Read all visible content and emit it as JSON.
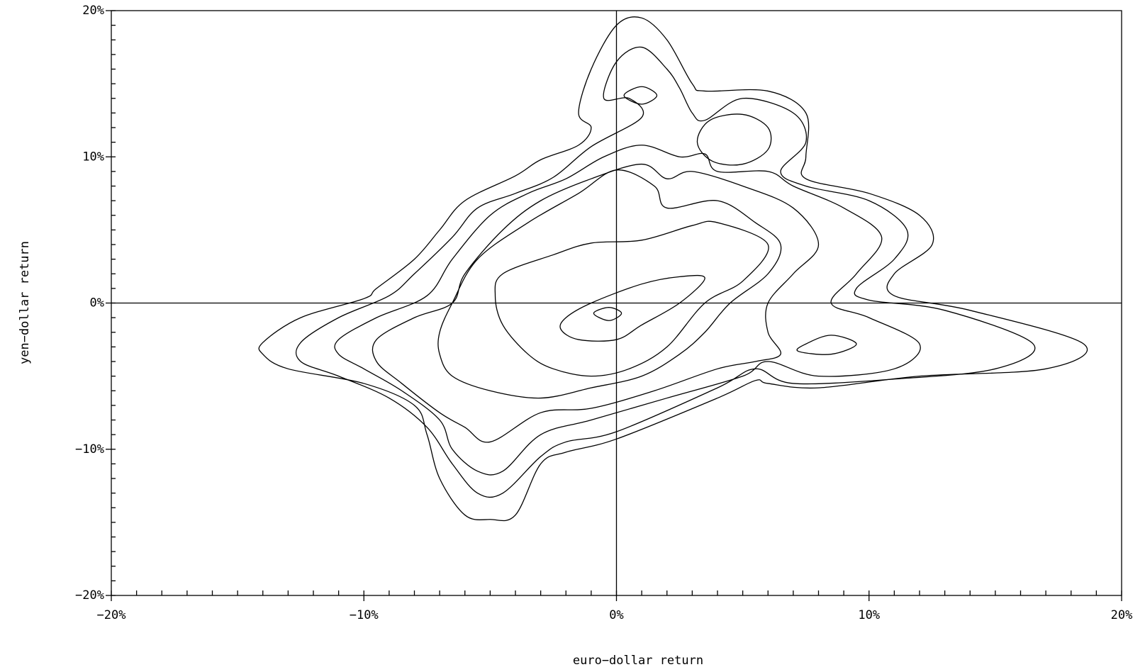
{
  "chart_data": {
    "type": "contour",
    "xlabel": "euro−dollar return",
    "ylabel": "yen−dollar return",
    "xlim": [
      -20,
      20
    ],
    "ylim": [
      -20,
      20
    ],
    "xticks": [
      {
        "value": -20,
        "label": "−20%"
      },
      {
        "value": -10,
        "label": "−10%"
      },
      {
        "value": 0,
        "label": "0%"
      },
      {
        "value": 10,
        "label": "10%"
      },
      {
        "value": 20,
        "label": "20%"
      }
    ],
    "yticks": [
      {
        "value": -20,
        "label": "−20%"
      },
      {
        "value": -10,
        "label": "−10%"
      },
      {
        "value": 0,
        "label": "0%"
      },
      {
        "value": 10,
        "label": "10%"
      },
      {
        "value": 20,
        "label": "20%"
      }
    ],
    "minor_step": 1,
    "vlines": [
      0
    ],
    "hlines": [
      0
    ],
    "color": "#000000",
    "series": [
      {
        "points": [
          [
            -14,
            -2.7
          ],
          [
            -12.5,
            -1
          ],
          [
            -10,
            0.3
          ],
          [
            -9.5,
            1
          ],
          [
            -8,
            3
          ],
          [
            -7,
            5
          ],
          [
            -6,
            7
          ],
          [
            -4,
            8.7
          ],
          [
            -3,
            9.8
          ],
          [
            -1.5,
            10.8
          ],
          [
            -1,
            12
          ],
          [
            -1.5,
            13
          ],
          [
            -1,
            16
          ],
          [
            0,
            19
          ],
          [
            1,
            19.5
          ],
          [
            2,
            18
          ],
          [
            3,
            15
          ],
          [
            3.5,
            14.5
          ],
          [
            6,
            14.5
          ],
          [
            7.5,
            13
          ],
          [
            7.5,
            10
          ],
          [
            7.5,
            8.5
          ],
          [
            10,
            7.5
          ],
          [
            12,
            6
          ],
          [
            12.5,
            4
          ],
          [
            11,
            2
          ],
          [
            11,
            0.5
          ],
          [
            14,
            -0.5
          ],
          [
            18.5,
            -2.8
          ],
          [
            17,
            -4.5
          ],
          [
            12,
            -5
          ],
          [
            8,
            -5.8
          ],
          [
            6,
            -5.5
          ],
          [
            5.5,
            -5.3
          ],
          [
            4,
            -6.5
          ],
          [
            0,
            -9.3
          ],
          [
            -2,
            -10.2
          ],
          [
            -3,
            -11
          ],
          [
            -4,
            -14.5
          ],
          [
            -5,
            -14.8
          ],
          [
            -6,
            -14.5
          ],
          [
            -7,
            -12
          ],
          [
            -7.5,
            -9
          ],
          [
            -8,
            -7
          ],
          [
            -10,
            -5.5
          ],
          [
            -13,
            -4.5
          ],
          [
            -14,
            -3.5
          ]
        ]
      },
      {
        "points": [
          [
            -12.5,
            -2.7
          ],
          [
            -11,
            -1
          ],
          [
            -9,
            0.5
          ],
          [
            -8,
            2
          ],
          [
            -6.5,
            4.5
          ],
          [
            -5.5,
            6.5
          ],
          [
            -4,
            7.5
          ],
          [
            -2.5,
            8.6
          ],
          [
            -1,
            10.7
          ],
          [
            1,
            12.7
          ],
          [
            0.5,
            14
          ],
          [
            -0.5,
            14
          ],
          [
            0,
            16.5
          ],
          [
            1,
            17.5
          ],
          [
            2,
            16
          ],
          [
            2.5,
            14.7
          ],
          [
            3,
            13
          ],
          [
            3.5,
            12.5
          ],
          [
            5,
            14
          ],
          [
            7,
            13
          ],
          [
            7.5,
            11
          ],
          [
            6.5,
            9
          ],
          [
            7.5,
            8
          ],
          [
            10,
            7
          ],
          [
            11.5,
            5
          ],
          [
            11,
            3
          ],
          [
            9.5,
            1
          ],
          [
            10,
            0.2
          ],
          [
            13,
            -0.5
          ],
          [
            16.5,
            -2.8
          ],
          [
            15,
            -4.5
          ],
          [
            11,
            -5.2
          ],
          [
            7,
            -5.5
          ],
          [
            5.5,
            -4.5
          ],
          [
            4,
            -5.8
          ],
          [
            0,
            -8.8
          ],
          [
            -2,
            -9.5
          ],
          [
            -3,
            -10.5
          ],
          [
            -4.5,
            -13
          ],
          [
            -5.5,
            -13
          ],
          [
            -6.5,
            -11
          ],
          [
            -7.5,
            -8.5
          ],
          [
            -9,
            -6.5
          ],
          [
            -11,
            -5
          ],
          [
            -12.5,
            -4
          ]
        ]
      },
      {
        "points": [
          [
            -11,
            -2.5
          ],
          [
            -9.5,
            -1
          ],
          [
            -7.5,
            0.5
          ],
          [
            -6.5,
            3
          ],
          [
            -5,
            6
          ],
          [
            -3.5,
            7.5
          ],
          [
            -2,
            8.5
          ],
          [
            -0.5,
            10
          ],
          [
            1,
            10.8
          ],
          [
            2.5,
            10
          ],
          [
            3.5,
            10.2
          ],
          [
            4,
            9
          ],
          [
            6,
            9
          ],
          [
            7,
            8
          ],
          [
            9,
            6.5
          ],
          [
            10.5,
            4.5
          ],
          [
            9.5,
            2
          ],
          [
            8.5,
            0
          ],
          [
            10,
            -1
          ],
          [
            12,
            -2.8
          ],
          [
            11,
            -4.5
          ],
          [
            8,
            -5
          ],
          [
            6,
            -4
          ],
          [
            5,
            -5
          ],
          [
            2,
            -6.5
          ],
          [
            -1,
            -8
          ],
          [
            -3,
            -9
          ],
          [
            -4.5,
            -11.5
          ],
          [
            -5.5,
            -11.5
          ],
          [
            -6.5,
            -10
          ],
          [
            -7,
            -8
          ],
          [
            -8.5,
            -6
          ],
          [
            -10,
            -4.5
          ],
          [
            -11,
            -3.5
          ]
        ]
      },
      {
        "points": [
          [
            -9.5,
            -2.5
          ],
          [
            -8,
            -1
          ],
          [
            -6.5,
            0
          ],
          [
            -6,
            2
          ],
          [
            -4.5,
            5
          ],
          [
            -3,
            7
          ],
          [
            -1,
            8.5
          ],
          [
            1,
            9.5
          ],
          [
            2,
            8.5
          ],
          [
            3,
            9
          ],
          [
            5,
            8
          ],
          [
            7,
            6.5
          ],
          [
            8,
            4
          ],
          [
            7,
            2
          ],
          [
            6,
            0
          ],
          [
            6,
            -2
          ],
          [
            6.5,
            -3.5
          ],
          [
            5.5,
            -4
          ],
          [
            4,
            -4.5
          ],
          [
            1.5,
            -6
          ],
          [
            -1,
            -7.2
          ],
          [
            -3,
            -7.5
          ],
          [
            -5,
            -9.5
          ],
          [
            -6,
            -8.5
          ],
          [
            -7,
            -7.5
          ],
          [
            -8.5,
            -5.5
          ],
          [
            -9.5,
            -4
          ]
        ]
      },
      {
        "points": [
          [
            -7,
            -2
          ],
          [
            -6.5,
            0
          ],
          [
            -5.5,
            3
          ],
          [
            -3.5,
            5.5
          ],
          [
            -1.5,
            7.5
          ],
          [
            0,
            9.1
          ],
          [
            1.5,
            8
          ],
          [
            2,
            6.5
          ],
          [
            4,
            7
          ],
          [
            5.5,
            5.5
          ],
          [
            6.5,
            4
          ],
          [
            6,
            2
          ],
          [
            4.5,
            0
          ],
          [
            3.5,
            -2
          ],
          [
            2.5,
            -3.5
          ],
          [
            1,
            -5
          ],
          [
            -1,
            -5.8
          ],
          [
            -3,
            -6.5
          ],
          [
            -5,
            -6
          ],
          [
            -6.5,
            -5
          ],
          [
            -7,
            -3.5
          ]
        ]
      },
      {
        "points": [
          [
            -4.5,
            2
          ],
          [
            -2.5,
            3.3
          ],
          [
            -1,
            4.1
          ],
          [
            1,
            4.3
          ],
          [
            3,
            5.3
          ],
          [
            4,
            5.5
          ],
          [
            6,
            4
          ],
          [
            5,
            1.5
          ],
          [
            3.5,
            0
          ],
          [
            2,
            -3
          ],
          [
            0.5,
            -4.5
          ],
          [
            -1,
            -5
          ],
          [
            -2.5,
            -4.5
          ],
          [
            -3.5,
            -3.5
          ],
          [
            -4.5,
            -1.5
          ],
          [
            -4.8,
            0.5
          ]
        ]
      },
      {
        "points": [
          [
            -2,
            -1
          ],
          [
            -1,
            0
          ],
          [
            1,
            1.3
          ],
          [
            2.5,
            1.8
          ],
          [
            3.5,
            1.7
          ],
          [
            2.5,
            0
          ],
          [
            1,
            -1.5
          ],
          [
            0,
            -2.5
          ],
          [
            -1.5,
            -2.5
          ],
          [
            -2.2,
            -1.8
          ]
        ]
      },
      {
        "points": [
          [
            -0.9,
            -0.7
          ],
          [
            -0.3,
            -0.3
          ],
          [
            0.2,
            -0.7
          ],
          [
            -0.3,
            -1.2
          ]
        ]
      },
      {
        "points": [
          [
            0.3,
            14.2
          ],
          [
            1,
            14.8
          ],
          [
            1.6,
            14.2
          ],
          [
            1,
            13.6
          ]
        ]
      },
      {
        "points": [
          [
            3.2,
            11
          ],
          [
            3.7,
            12.5
          ],
          [
            5,
            12.9
          ],
          [
            6,
            12
          ],
          [
            6,
            10.5
          ],
          [
            5,
            9.5
          ],
          [
            3.8,
            9.7
          ]
        ]
      },
      {
        "points": [
          [
            7.5,
            -2.8
          ],
          [
            8.5,
            -2.2
          ],
          [
            9.5,
            -2.8
          ],
          [
            8.5,
            -3.5
          ],
          [
            7.2,
            -3.3
          ]
        ]
      }
    ]
  }
}
